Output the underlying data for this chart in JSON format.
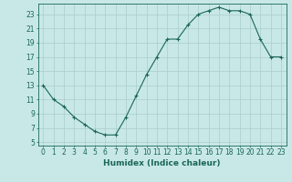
{
  "x": [
    0,
    1,
    2,
    3,
    4,
    5,
    6,
    7,
    8,
    9,
    10,
    11,
    12,
    13,
    14,
    15,
    16,
    17,
    18,
    19,
    20,
    21,
    22,
    23
  ],
  "y": [
    13,
    11,
    10,
    8.5,
    7.5,
    6.5,
    6.0,
    6.0,
    8.5,
    11.5,
    14.5,
    17.0,
    19.5,
    19.5,
    21.5,
    23.0,
    23.5,
    24.0,
    23.5,
    23.5,
    23.0,
    19.5,
    17.0,
    17.0
  ],
  "line_color": "#1a6655",
  "marker": "+",
  "marker_size": 3,
  "marker_linewidth": 0.8,
  "line_width": 0.8,
  "background_color": "#c8e8e8",
  "grid_color": "#aacccc",
  "xlabel": "Humidex (Indice chaleur)",
  "xlim": [
    -0.5,
    23.5
  ],
  "ylim": [
    4.5,
    24.5
  ],
  "yticks": [
    5,
    7,
    9,
    11,
    13,
    15,
    17,
    19,
    21,
    23
  ],
  "xticks": [
    0,
    1,
    2,
    3,
    4,
    5,
    6,
    7,
    8,
    9,
    10,
    11,
    12,
    13,
    14,
    15,
    16,
    17,
    18,
    19,
    20,
    21,
    22,
    23
  ],
  "tick_color": "#1a6655",
  "label_color": "#1a6655",
  "tick_fontsize": 5.5,
  "xlabel_fontsize": 6.5
}
